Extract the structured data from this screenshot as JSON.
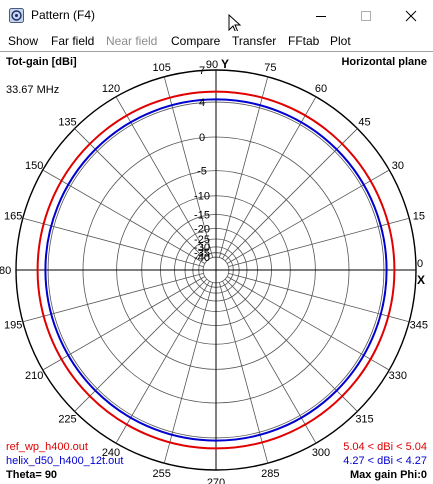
{
  "window": {
    "title": "Pattern   (F4)"
  },
  "menu": [
    {
      "label": "Show",
      "enabled": true
    },
    {
      "label": "Far field",
      "enabled": true
    },
    {
      "label": "Near field",
      "enabled": false
    },
    {
      "label": "Compare",
      "enabled": true
    },
    {
      "label": "Transfer",
      "enabled": true
    },
    {
      "label": "FFtab",
      "enabled": true
    },
    {
      "label": "Plot",
      "enabled": true
    }
  ],
  "plot": {
    "quantity_label": "Tot-gain [dBi]",
    "plane_label": "Horizontal plane",
    "frequency": "33.67 MHz",
    "y_axis_label": "Y",
    "x_marker": "X",
    "theta_label": "Theta= 90",
    "max_gain_label": "Max gain Phi:0",
    "legend": [
      {
        "name": "ref_wp_h400.out",
        "range": "5.04 < dBi < 5.04",
        "color": "#e00000"
      },
      {
        "name": "helix_d50_h400_12t.out",
        "range": "4.27 < dBi < 4.27",
        "color": "#0000d0"
      }
    ]
  },
  "chart_data": {
    "type": "polar",
    "radial_ticks": [
      "7",
      "4",
      "0",
      "-5",
      "-10",
      "-15",
      "-20",
      "-25",
      "-30",
      "-35",
      "-40"
    ],
    "angle_labels": [
      "0",
      "15",
      "30",
      "45",
      "60",
      "75",
      "90",
      "105",
      "120",
      "135",
      "150",
      "165",
      "180",
      "195",
      "210",
      "225",
      "240",
      "255",
      "270",
      "285",
      "300",
      "315",
      "330",
      "345"
    ],
    "series": [
      {
        "name": "ref_wp_h400.out",
        "gain_dbi": 5.04,
        "color": "#e00000"
      },
      {
        "name": "helix_d50_h400_12t.out",
        "gain_dbi": 4.27,
        "color": "#0000d0"
      }
    ]
  }
}
